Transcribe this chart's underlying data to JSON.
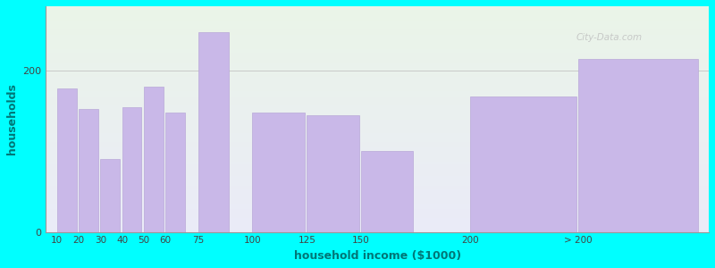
{
  "xlabel": "household income ($1000)",
  "ylabel": "households",
  "background_color": "#00FFFF",
  "plot_bg_top": "#eaf5e8",
  "plot_bg_bottom": "#ebebf8",
  "bar_color": "#c9b8e8",
  "bar_edge_color": "#b8a8d8",
  "title_color": "#222222",
  "subtitle_color": "#008888",
  "axis_label_color": "#007777",
  "categories": [
    "10",
    "20",
    "30",
    "40",
    "50",
    "60",
    "75",
    "100",
    "125",
    "150",
    "200",
    "> 200"
  ],
  "values": [
    178,
    152,
    90,
    155,
    180,
    148,
    248,
    148,
    145,
    100,
    168,
    215
  ],
  "ylim": [
    0,
    280
  ],
  "yticks": [
    0,
    200
  ],
  "watermark": "City-Data.com",
  "positions": [
    10,
    20,
    30,
    40,
    50,
    60,
    75,
    100,
    125,
    150,
    200,
    250
  ],
  "widths": [
    9,
    9,
    9,
    9,
    9,
    9,
    14,
    24,
    24,
    24,
    49,
    55
  ]
}
